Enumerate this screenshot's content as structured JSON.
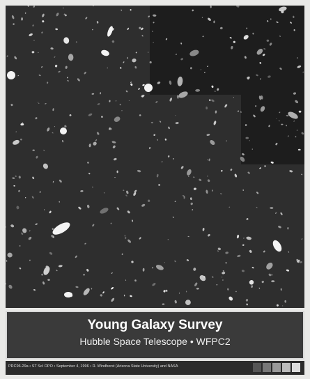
{
  "poster": {
    "title": "Young Galaxy Survey",
    "subtitle": "Hubble Space Telescope • WFPC2",
    "credit": "PRC96-29a • ST ScI OPO • September 4, 1996 • R. Windhorst (Arizona State University) and NASA"
  }
}
